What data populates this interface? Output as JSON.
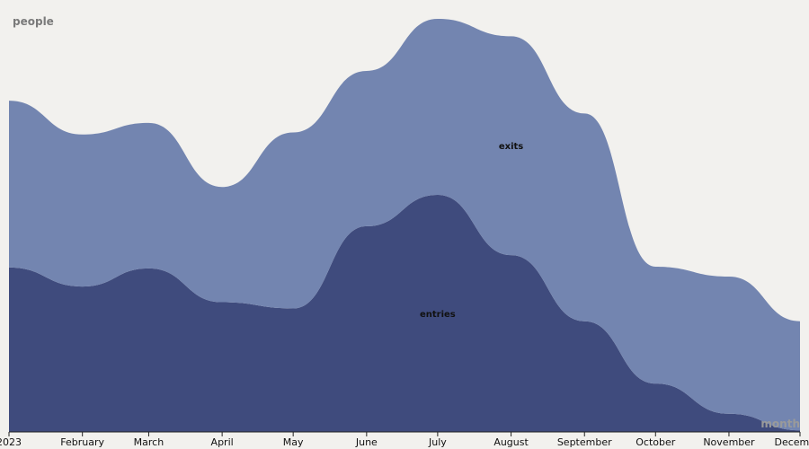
{
  "chart_data": {
    "type": "area",
    "stacked": true,
    "ylabel": "people",
    "xlabel": "month",
    "x": [
      "2023",
      "February",
      "March",
      "April",
      "May",
      "June",
      "July",
      "August",
      "September",
      "October",
      "November",
      "December"
    ],
    "ylim": [
      0,
      100
    ],
    "grid": false,
    "series": [
      {
        "name": "entries",
        "color": "#3f4b7d",
        "values": [
          39.8,
          35.2,
          39.6,
          31.4,
          29.9,
          49.8,
          57.4,
          42.8,
          26.8,
          11.7,
          4.4,
          0.4
        ]
      },
      {
        "name": "exits",
        "color": "#7385b0",
        "values": [
          40.4,
          36.8,
          35.2,
          27.9,
          42.6,
          37.6,
          42.6,
          53.0,
          50.3,
          28.3,
          33.2,
          26.4
        ]
      }
    ]
  }
}
